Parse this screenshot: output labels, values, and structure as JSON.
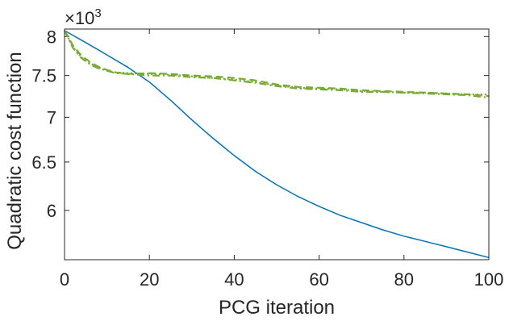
{
  "chart_data": {
    "type": "line",
    "xlabel": "PCG iteration",
    "ylabel": "Quadratic cost function",
    "y_exponent_base": "×10",
    "y_exponent_power": "3",
    "xlim": [
      0,
      100
    ],
    "ylim": [
      5.53,
      8.1
    ],
    "y_scale": "log",
    "x_ticks": [
      0,
      20,
      40,
      60,
      80,
      100
    ],
    "x_tick_labels": [
      "0",
      "20",
      "40",
      "60",
      "80",
      "100"
    ],
    "y_ticks": [
      6,
      6.5,
      7,
      7.5,
      8
    ],
    "y_tick_labels": [
      "6",
      "6.5",
      "7",
      "7.5",
      "8"
    ],
    "grid": false,
    "box": true,
    "series": [
      {
        "color": "#0072BD",
        "dash": "solid",
        "x": [
          0,
          5,
          10,
          15,
          20,
          25,
          30,
          35,
          40,
          45,
          50,
          55,
          60,
          65,
          70,
          75,
          80,
          85,
          90,
          95,
          100
        ],
        "y": [
          8.08,
          7.92,
          7.76,
          7.6,
          7.42,
          7.2,
          6.97,
          6.76,
          6.57,
          6.4,
          6.26,
          6.14,
          6.04,
          5.95,
          5.88,
          5.81,
          5.75,
          5.7,
          5.65,
          5.6,
          5.55
        ]
      },
      {
        "color": "#77AC30",
        "dash": "dashed",
        "x": [
          0,
          2,
          4,
          6,
          8,
          10,
          12,
          15,
          20,
          25,
          30,
          35,
          40,
          45,
          50,
          55,
          60,
          65,
          70,
          75,
          80,
          85,
          90,
          95,
          100
        ],
        "y": [
          8.08,
          7.88,
          7.75,
          7.67,
          7.61,
          7.57,
          7.54,
          7.52,
          7.53,
          7.52,
          7.5,
          7.49,
          7.47,
          7.44,
          7.39,
          7.36,
          7.35,
          7.34,
          7.32,
          7.31,
          7.3,
          7.29,
          7.28,
          7.27,
          7.25
        ]
      },
      {
        "color": "#77AC30",
        "dash": "dotted",
        "x": [
          0,
          2,
          4,
          6,
          8,
          10,
          12,
          15,
          20,
          25,
          30,
          35,
          40,
          45,
          50,
          55,
          60,
          65,
          70,
          75,
          80,
          85,
          90,
          95,
          100
        ],
        "y": [
          8.08,
          7.86,
          7.73,
          7.65,
          7.6,
          7.56,
          7.54,
          7.53,
          7.52,
          7.51,
          7.49,
          7.47,
          7.45,
          7.42,
          7.38,
          7.35,
          7.34,
          7.33,
          7.31,
          7.3,
          7.29,
          7.29,
          7.28,
          7.27,
          7.27
        ]
      },
      {
        "color": "#77AC30",
        "dash": "dashdot",
        "x": [
          0,
          2,
          4,
          6,
          8,
          10,
          12,
          15,
          20,
          25,
          30,
          35,
          40,
          45,
          50,
          55,
          60,
          65,
          70,
          75,
          80,
          85,
          90,
          95,
          100
        ],
        "y": [
          8.08,
          7.85,
          7.72,
          7.64,
          7.59,
          7.56,
          7.53,
          7.52,
          7.5,
          7.5,
          7.48,
          7.47,
          7.44,
          7.41,
          7.37,
          7.34,
          7.33,
          7.32,
          7.3,
          7.3,
          7.29,
          7.28,
          7.27,
          7.26,
          7.23
        ]
      }
    ]
  }
}
